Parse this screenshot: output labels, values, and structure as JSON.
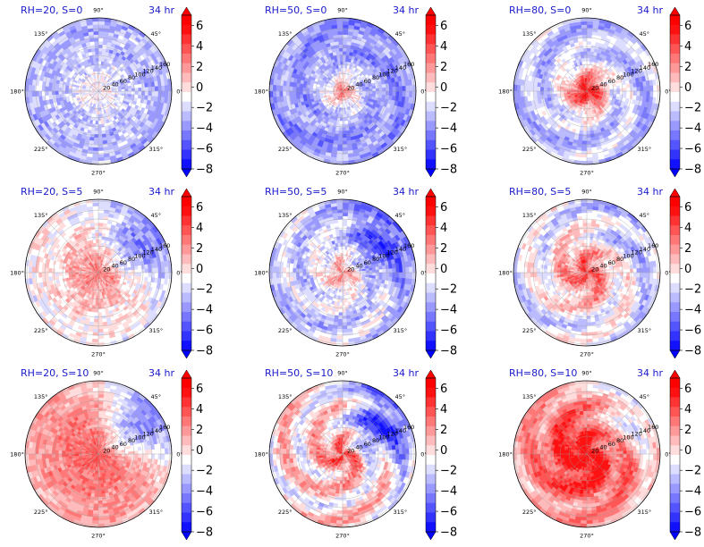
{
  "figure": {
    "time_label": "34 hr",
    "colorbar_ticks": [
      "6",
      "4",
      "2",
      "0",
      "−2",
      "−4",
      "−6",
      "−8"
    ],
    "colorbar_levels": [
      -8,
      -7,
      -6,
      -5,
      -4,
      -3,
      -2,
      -1,
      0,
      1,
      2,
      3,
      4,
      5,
      6,
      7
    ],
    "colors": {
      "negative": "#0000ff",
      "positive": "#ff0000",
      "neutral": "#ffffff",
      "title": "#1a1acc"
    }
  },
  "chart_data": [
    {
      "type": "heatmap",
      "projection": "polar",
      "title": "RH=20, S=0",
      "time": "34 hr",
      "angle_ticks": [
        "90°",
        "45°",
        "0°",
        "315°",
        "270°",
        "225°",
        "180°",
        "135°"
      ],
      "radial_ticks": [
        "20",
        "40",
        "60",
        "80",
        "100",
        "120",
        "140",
        "160"
      ],
      "vmin": -8,
      "vmax": 7,
      "pattern": {
        "center": -1,
        "center_radius": 0.0,
        "ambient": -2.5,
        "noise": 1.6,
        "spiral": 0.4,
        "blue_sector": 0.0
      }
    },
    {
      "type": "heatmap",
      "projection": "polar",
      "title": "RH=50, S=0",
      "time": "34 hr",
      "angle_ticks": [
        "90°",
        "45°",
        "0°",
        "315°",
        "270°",
        "225°",
        "180°",
        "135°"
      ],
      "radial_ticks": [
        "20",
        "40",
        "60",
        "80",
        "100",
        "120",
        "140",
        "160"
      ],
      "vmin": -8,
      "vmax": 7,
      "pattern": {
        "center": 3.5,
        "center_radius": 0.14,
        "ambient": -3.5,
        "noise": 1.4,
        "spiral": 1.0,
        "blue_sector": 0.0
      }
    },
    {
      "type": "heatmap",
      "projection": "polar",
      "title": "RH=80, S=0",
      "time": "34 hr",
      "angle_ticks": [
        "90°",
        "45°",
        "0°",
        "315°",
        "270°",
        "225°",
        "180°",
        "135°"
      ],
      "radial_ticks": [
        "20",
        "40",
        "60",
        "80",
        "100",
        "120",
        "140",
        "160"
      ],
      "vmin": -8,
      "vmax": 7,
      "pattern": {
        "center": 6.5,
        "center_radius": 0.28,
        "ambient": -2.2,
        "noise": 1.2,
        "spiral": 1.4,
        "blue_sector": 0.0
      }
    },
    {
      "type": "heatmap",
      "projection": "polar",
      "title": "RH=20, S=5",
      "time": "34 hr",
      "angle_ticks": [
        "90°",
        "45°",
        "0°",
        "315°",
        "270°",
        "225°",
        "180°",
        "135°"
      ],
      "radial_ticks": [
        "20",
        "40",
        "60",
        "80",
        "100",
        "120",
        "140",
        "160"
      ],
      "vmin": -8,
      "vmax": 7,
      "pattern": {
        "center": 4.0,
        "center_radius": 0.45,
        "ambient": -0.5,
        "noise": 1.5,
        "spiral": 0.5,
        "blue_sector": 4.0
      }
    },
    {
      "type": "heatmap",
      "projection": "polar",
      "title": "RH=50, S=5",
      "time": "34 hr",
      "angle_ticks": [
        "90°",
        "45°",
        "0°",
        "315°",
        "270°",
        "225°",
        "180°",
        "135°"
      ],
      "radial_ticks": [
        "20",
        "40",
        "60",
        "80",
        "100",
        "120",
        "140",
        "160"
      ],
      "vmin": -8,
      "vmax": 7,
      "pattern": {
        "center": 2.5,
        "center_radius": 0.22,
        "ambient": -1.8,
        "noise": 1.6,
        "spiral": 1.2,
        "blue_sector": 3.5
      }
    },
    {
      "type": "heatmap",
      "projection": "polar",
      "title": "RH=80, S=5",
      "time": "34 hr",
      "angle_ticks": [
        "90°",
        "45°",
        "0°",
        "315°",
        "270°",
        "225°",
        "180°",
        "135°"
      ],
      "radial_ticks": [
        "20",
        "40",
        "60",
        "80",
        "100",
        "120",
        "140",
        "160"
      ],
      "vmin": -8,
      "vmax": 7,
      "pattern": {
        "center": 6.5,
        "center_radius": 0.42,
        "ambient": -1.5,
        "noise": 1.3,
        "spiral": 1.6,
        "blue_sector": 1.5
      }
    },
    {
      "type": "heatmap",
      "projection": "polar",
      "title": "RH=20, S=10",
      "time": "34 hr",
      "angle_ticks": [
        "90°",
        "45°",
        "0°",
        "315°",
        "270°",
        "225°",
        "180°",
        "135°"
      ],
      "radial_ticks": [
        "20",
        "40",
        "60",
        "80",
        "100",
        "120",
        "140",
        "160"
      ],
      "vmin": -8,
      "vmax": 7,
      "pattern": {
        "center": 3.0,
        "center_radius": 0.7,
        "ambient": 1.5,
        "noise": 1.2,
        "spiral": 0.3,
        "blue_sector": 6.0
      }
    },
    {
      "type": "heatmap",
      "projection": "polar",
      "title": "RH=50, S=10",
      "time": "34 hr",
      "angle_ticks": [
        "90°",
        "45°",
        "0°",
        "315°",
        "270°",
        "225°",
        "180°",
        "135°"
      ],
      "radial_ticks": [
        "20",
        "40",
        "60",
        "80",
        "100",
        "120",
        "140",
        "160"
      ],
      "vmin": -8,
      "vmax": 7,
      "pattern": {
        "center": 4.5,
        "center_radius": 0.3,
        "ambient": 0.5,
        "noise": 1.4,
        "spiral": 2.2,
        "blue_sector": 6.0
      }
    },
    {
      "type": "heatmap",
      "projection": "polar",
      "title": "RH=80, S=10",
      "time": "34 hr",
      "angle_ticks": [
        "90°",
        "45°",
        "0°",
        "315°",
        "270°",
        "225°",
        "180°",
        "135°"
      ],
      "radial_ticks": [
        "20",
        "40",
        "60",
        "80",
        "100",
        "120",
        "140",
        "160"
      ],
      "vmin": -8,
      "vmax": 7,
      "pattern": {
        "center": 6.0,
        "center_radius": 0.62,
        "ambient": 1.5,
        "noise": 1.2,
        "spiral": 1.6,
        "blue_sector": 3.5
      }
    }
  ]
}
